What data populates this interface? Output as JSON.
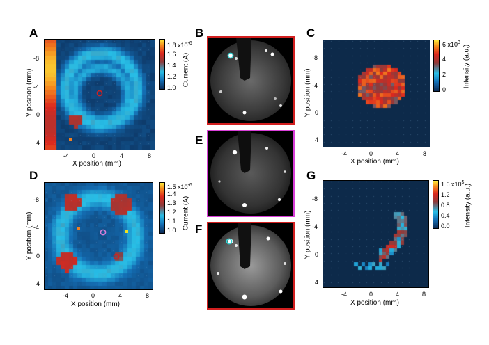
{
  "panels": {
    "A": {
      "label": "A",
      "xlabel": "X position (mm)",
      "ylabel": "Y position (mm)",
      "xticks": [
        "-4",
        "0",
        "4",
        "8"
      ],
      "yticks": [
        "-8",
        "-4",
        "0",
        "4"
      ],
      "colorbar_label": "Current (A)",
      "colorbar_ticks": [
        "1.8 x10",
        "1.6",
        "1.4",
        "1.2",
        "1.0"
      ],
      "colorbar_exponent": "-6",
      "colorbar_range": [
        1.0,
        1.85
      ]
    },
    "B": {
      "label": "B",
      "frame_color": "#d21f1f"
    },
    "C": {
      "label": "C",
      "xlabel": "X position (mm)",
      "ylabel": "Y position (mm)",
      "xticks": [
        "-4",
        "0",
        "4",
        "8"
      ],
      "yticks": [
        "-8",
        "-4",
        "0",
        "4"
      ],
      "colorbar_label": "Intensity (a.u.)",
      "colorbar_ticks": [
        "6 x10",
        "4",
        "2",
        "0"
      ],
      "colorbar_exponent": "3",
      "colorbar_range": [
        0,
        6000
      ]
    },
    "D": {
      "label": "D",
      "xlabel": "X position (mm)",
      "ylabel": "Y position (mm)",
      "xticks": [
        "-4",
        "0",
        "4",
        "8"
      ],
      "yticks": [
        "-8",
        "-4",
        "0",
        "4"
      ],
      "colorbar_label": "Current (A)",
      "colorbar_ticks": [
        "1.5 x10",
        "1.4",
        "1.3",
        "1.2",
        "1.1",
        "1.0"
      ],
      "colorbar_exponent": "-6",
      "colorbar_range": [
        1.0,
        1.55
      ]
    },
    "E": {
      "label": "E",
      "frame_color": "#d83fd8"
    },
    "F": {
      "label": "F",
      "frame_color": "#d21f1f"
    },
    "G": {
      "label": "G",
      "xlabel": "X position (mm)",
      "ylabel": "Y position (mm)",
      "xticks": [
        "-4",
        "0",
        "4",
        "8"
      ],
      "yticks": [
        "-8",
        "-4",
        "0",
        "4"
      ],
      "colorbar_label": "Intensity (a.u.)",
      "colorbar_ticks": [
        "1.6 x10",
        "1.2",
        "0.8",
        "0.4",
        "0.0"
      ],
      "colorbar_exponent": "5",
      "colorbar_range": [
        0,
        160000
      ]
    }
  },
  "colors": {
    "map_background": "#0d2a4a",
    "marker_red": "#d21f1f",
    "marker_pink": "#d87fd8",
    "marker_cyan": "#2fd7d7",
    "marker_orange": "#f08020",
    "marker_yellow": "#f0e020"
  }
}
